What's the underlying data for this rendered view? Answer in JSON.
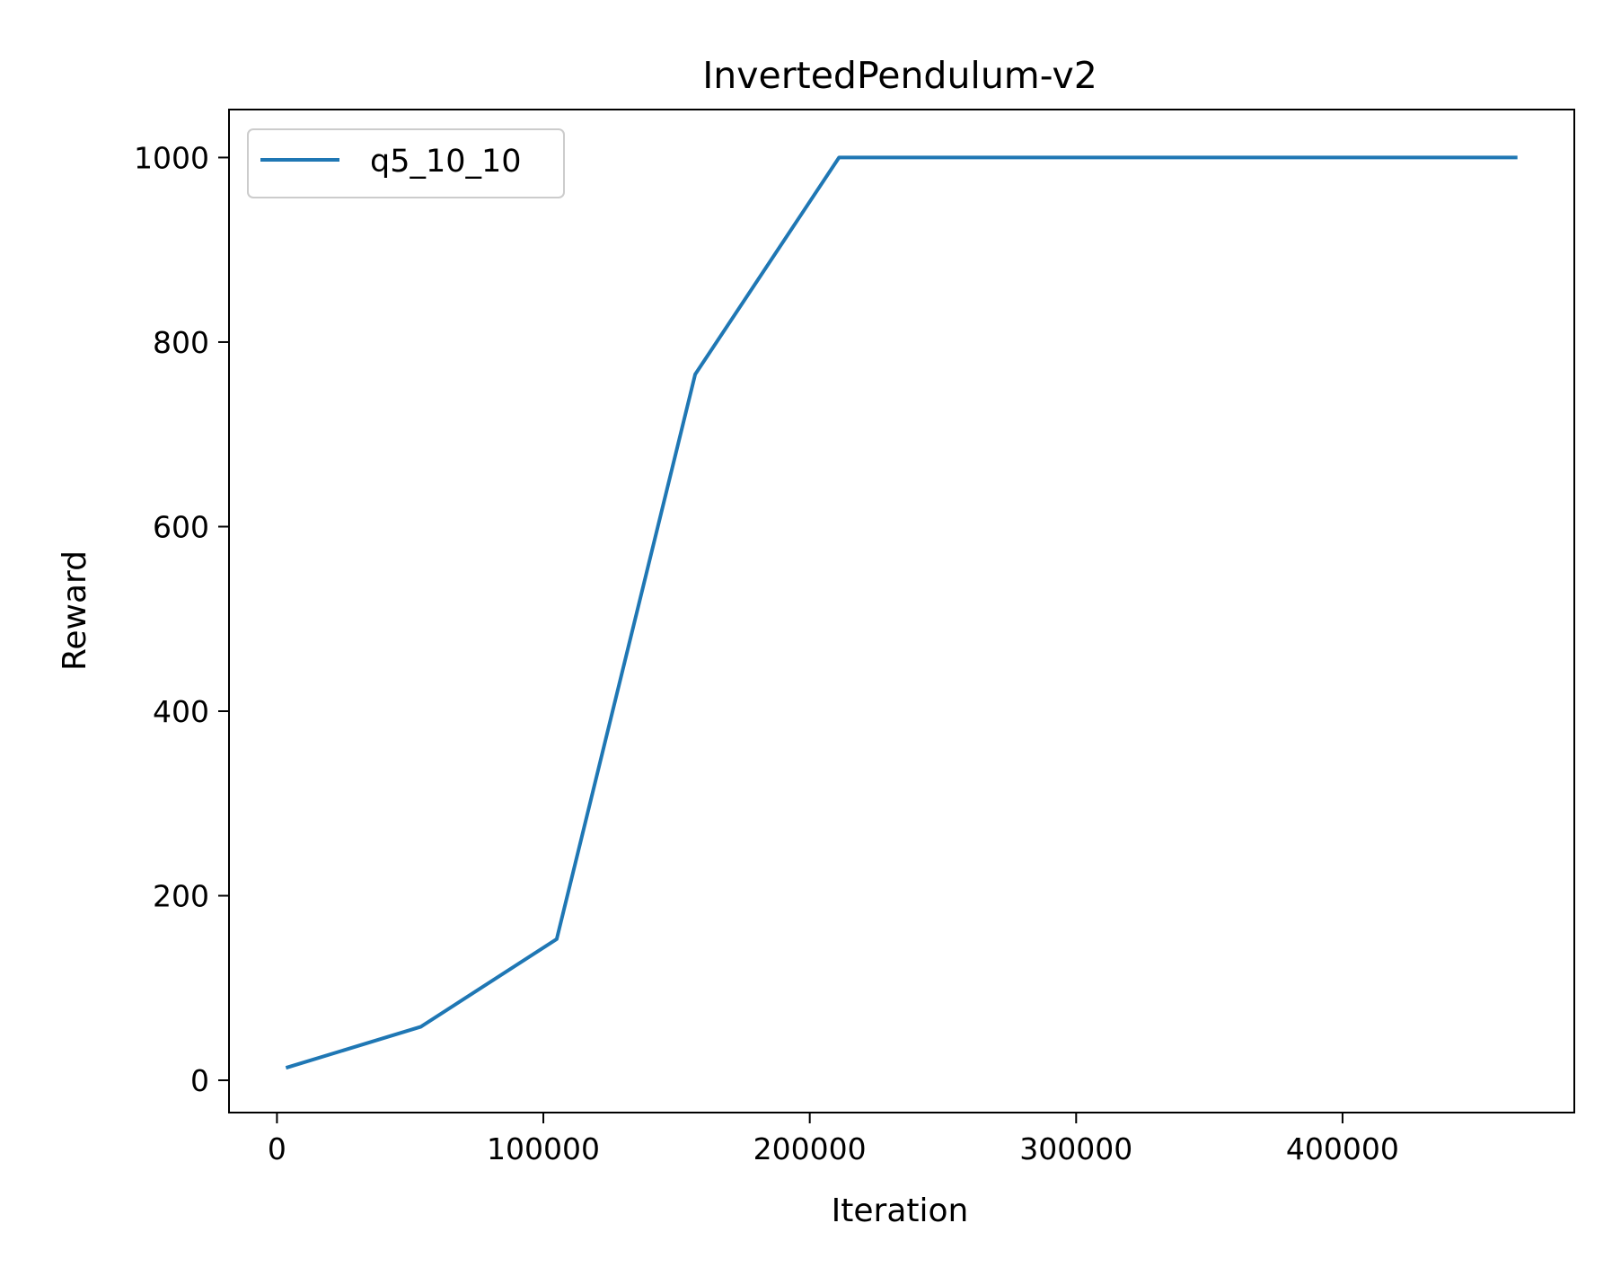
{
  "chart_data": {
    "type": "line",
    "title": "InvertedPendulum-v2",
    "xlabel": "Iteration",
    "ylabel": "Reward",
    "xlim": [
      -18000,
      487000
    ],
    "ylim": [
      -35,
      1052
    ],
    "xticks": [
      0,
      100000,
      200000,
      300000,
      400000
    ],
    "xtick_labels": [
      "0",
      "100000",
      "200000",
      "300000",
      "400000"
    ],
    "yticks": [
      0,
      200,
      400,
      600,
      800,
      1000
    ],
    "ytick_labels": [
      "0",
      "200",
      "400",
      "600",
      "800",
      "1000"
    ],
    "grid": false,
    "legend_position": "top-left",
    "series": [
      {
        "name": "q5_10_10",
        "color": "#1f77b4",
        "x": [
          4000,
          54000,
          105000,
          157000,
          211000,
          465000
        ],
        "y": [
          14,
          58,
          153,
          765,
          1000,
          1000
        ]
      }
    ]
  }
}
